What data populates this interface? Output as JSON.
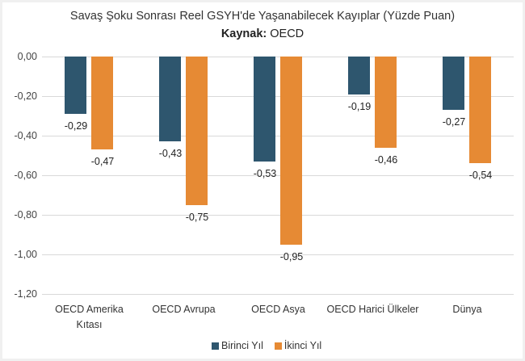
{
  "chart_data": {
    "type": "bar",
    "title": "Savaş Şoku Sonrası Reel GSYH'de Yaşanabilecek Kayıplar (Yüzde Puan)",
    "subtitle_label": "Kaynak:",
    "subtitle_value": "OECD",
    "categories": [
      "OECD Amerika Kıtası",
      "OECD Avrupa",
      "OECD Asya",
      "OECD Harici Ülkeler",
      "Dünya"
    ],
    "category_lines": [
      [
        "OECD Amerika",
        "Kıtası"
      ],
      [
        "OECD Avrupa"
      ],
      [
        "OECD Asya"
      ],
      [
        "OECD Harici Ülkeler"
      ],
      [
        "Dünya"
      ]
    ],
    "series": [
      {
        "name": "Birinci Yıl",
        "color": "#2e566e",
        "values": [
          -0.29,
          -0.43,
          -0.53,
          -0.19,
          -0.27
        ],
        "labels": [
          "-0,29",
          "-0,43",
          "-0,53",
          "-0,19",
          "-0,27"
        ]
      },
      {
        "name": "İkinci Yıl",
        "color": "#e68a34",
        "values": [
          -0.47,
          -0.75,
          -0.95,
          -0.46,
          -0.54
        ],
        "labels": [
          "-0,47",
          "-0,75",
          "-0,95",
          "-0,46",
          "-0,54"
        ]
      }
    ],
    "yticks": [
      "0,00",
      "-0,20",
      "-0,40",
      "-0,60",
      "-0,80",
      "-1,00",
      "-1,20"
    ],
    "ylim": [
      -1.2,
      0
    ],
    "xlabel": "",
    "ylabel": "",
    "grid": true,
    "legend_position": "bottom"
  }
}
